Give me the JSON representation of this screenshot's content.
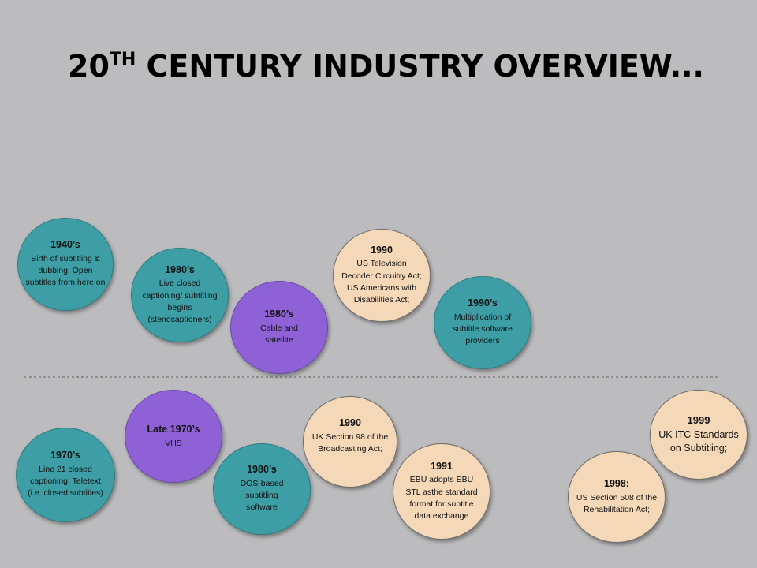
{
  "title": {
    "main": "20",
    "sup": "TH",
    "rest": " CENTURY INDUSTRY OVERVIEW..."
  },
  "top_events": [
    {
      "year": "1940’s",
      "text": "Birth of subtitling & dubbing; Open subtitles from here on"
    },
    {
      "year": "1980’s",
      "text": "Live closed captioning/ subtitling begins (stenocaptioners)"
    },
    {
      "year": "1980’s",
      "text": "Cable and satellite"
    },
    {
      "year": "1990",
      "text": "US Television Decoder Circuitry Act; US Americans with Disabilities Act;"
    },
    {
      "year": "1990’s",
      "text": "Multiplication of subtitle software providers"
    }
  ],
  "bottom_events": [
    {
      "year": "1970’s",
      "text": "Line 21 closed captioning; Teletext (i.e. closed subtitles)"
    },
    {
      "year": "Late 1970’s",
      "text": "VHS"
    },
    {
      "year": "1980’s",
      "text": "DOS-based subtitling software"
    },
    {
      "year": "1990",
      "text": "UK Section 98 of the Broadcasting Act;"
    },
    {
      "year": "1991",
      "text": "EBU adopts EBU STL asthe standard format for subtitle data exchange"
    },
    {
      "year": "1998:",
      "text": "US Section 508 of the Rehabilitation Act;"
    },
    {
      "year": "1999",
      "text": "UK ITC Standards on Subtitling;"
    }
  ]
}
